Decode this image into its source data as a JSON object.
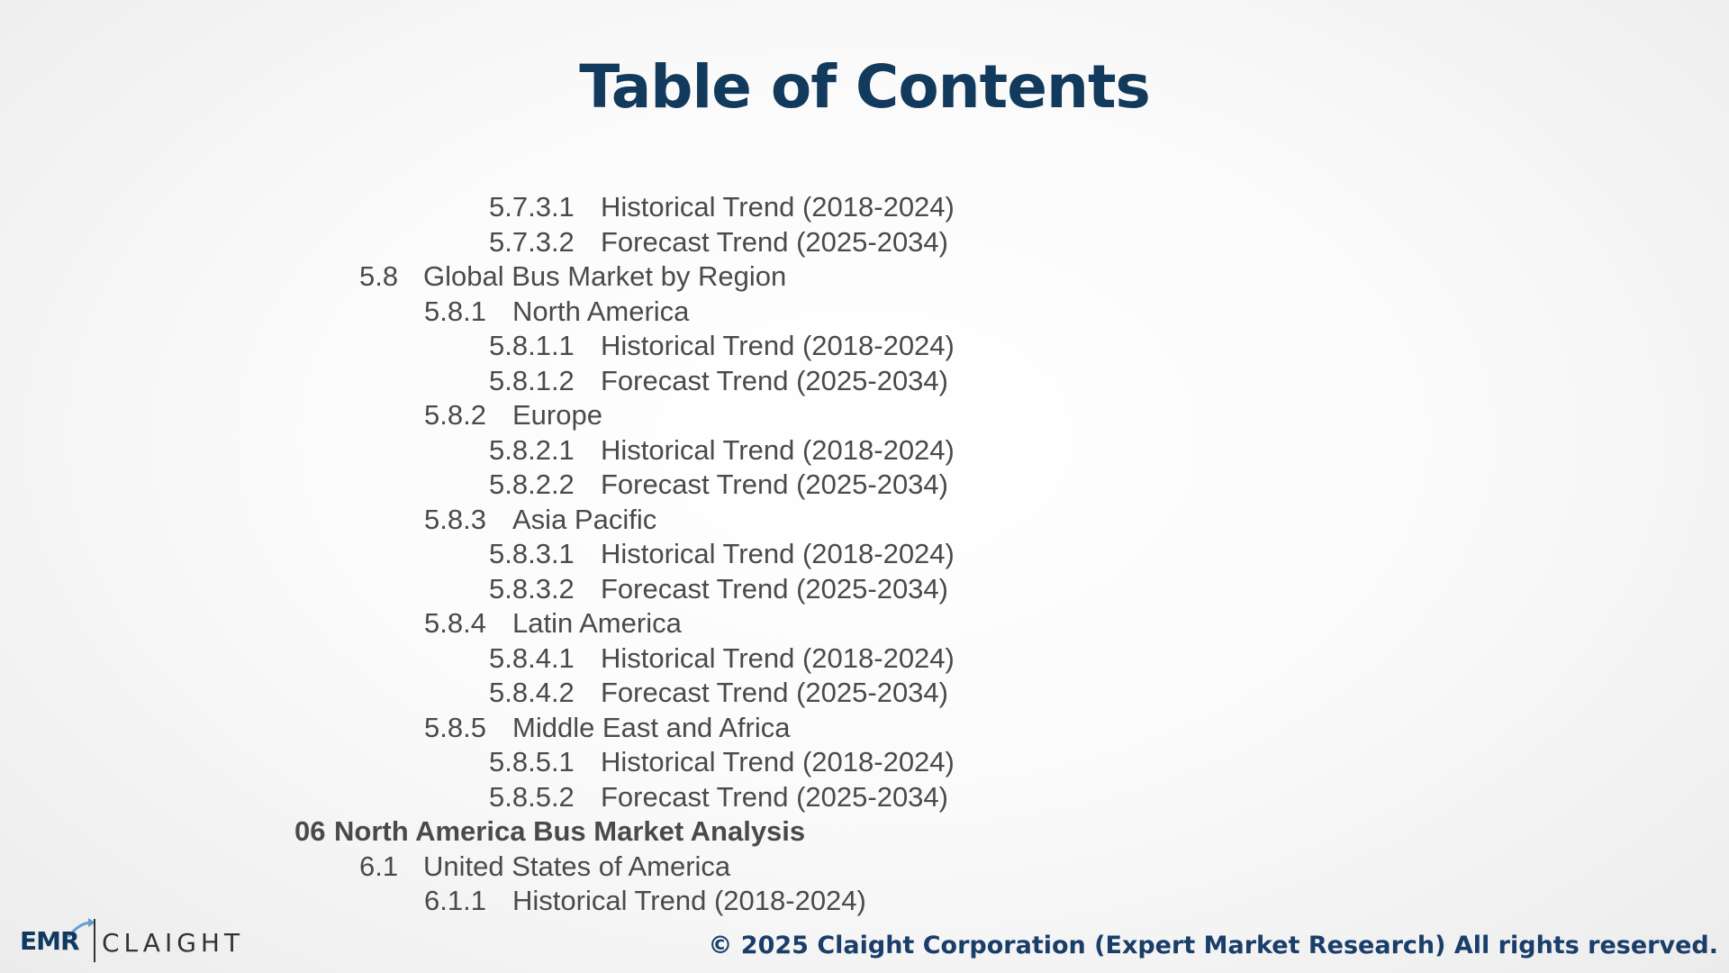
{
  "slide": {
    "title": "Table of Contents",
    "toc": [
      {
        "level": 3,
        "number": "5.7.3.1",
        "label": "Historical Trend (2018-2024)"
      },
      {
        "level": 3,
        "number": "5.7.3.2",
        "label": "Forecast Trend (2025-2034)"
      },
      {
        "level": 1,
        "number": "5.8",
        "label": "Global Bus Market by Region"
      },
      {
        "level": 2,
        "number": "5.8.1",
        "label": "North America"
      },
      {
        "level": 3,
        "number": "5.8.1.1",
        "label": "Historical Trend (2018-2024)"
      },
      {
        "level": 3,
        "number": "5.8.1.2",
        "label": "Forecast Trend (2025-2034)"
      },
      {
        "level": 2,
        "number": "5.8.2",
        "label": "Europe"
      },
      {
        "level": 3,
        "number": "5.8.2.1",
        "label": "Historical Trend (2018-2024)"
      },
      {
        "level": 3,
        "number": "5.8.2.2",
        "label": "Forecast Trend (2025-2034)"
      },
      {
        "level": 2,
        "number": "5.8.3",
        "label": "Asia Pacific"
      },
      {
        "level": 3,
        "number": "5.8.3.1",
        "label": "Historical Trend (2018-2024)"
      },
      {
        "level": 3,
        "number": "5.8.3.2",
        "label": "Forecast Trend (2025-2034)"
      },
      {
        "level": 2,
        "number": "5.8.4",
        "label": "Latin America"
      },
      {
        "level": 3,
        "number": "5.8.4.1",
        "label": "Historical Trend (2018-2024)"
      },
      {
        "level": 3,
        "number": "5.8.4.2",
        "label": "Forecast Trend (2025-2034)"
      },
      {
        "level": 2,
        "number": "5.8.5",
        "label": "Middle East and Africa"
      },
      {
        "level": 3,
        "number": "5.8.5.1",
        "label": "Historical Trend (2018-2024)"
      },
      {
        "level": 3,
        "number": "5.8.5.2",
        "label": "Forecast Trend (2025-2034)"
      },
      {
        "level": 0,
        "number": "06",
        "label": "North America Bus Market Analysis"
      },
      {
        "level": 1,
        "number": "6.1",
        "label": "United States of America"
      },
      {
        "level": 2,
        "number": "6.1.1",
        "label": "Historical Trend (2018-2024)"
      }
    ]
  },
  "footer": {
    "logo_left": "EMR",
    "logo_right": "CLAIGHT",
    "copyright": "© 2025 Claight Corporation (Expert Market Research) All rights reserved."
  },
  "colors": {
    "title": "#123a5c",
    "body_text": "#4a4a4a",
    "footer_text": "#1a3e6a"
  },
  "icons": {
    "logo_mark": "emr-arrow-icon"
  }
}
